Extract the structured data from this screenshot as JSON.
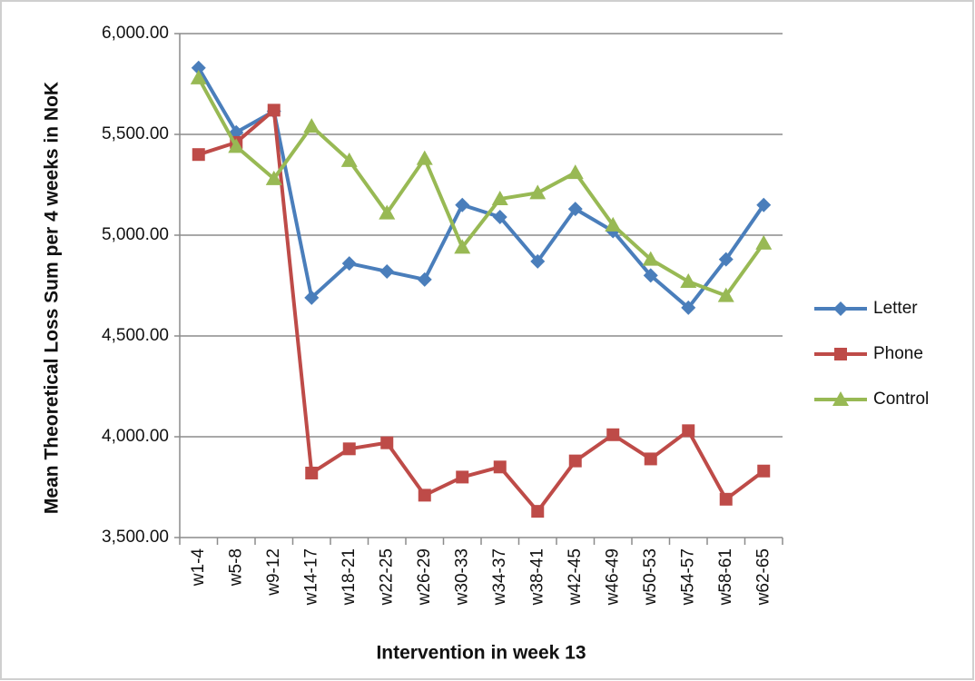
{
  "chart_data": {
    "type": "line",
    "y_label": "Mean Theoretical Loss Sum per 4 weeks in NoK",
    "x_label": "Intervention in week 13",
    "categories": [
      "w1-4",
      "w5-8",
      "w9-12",
      "w14-17",
      "w18-21",
      "w22-25",
      "w26-29",
      "w30-33",
      "w34-37",
      "w38-41",
      "w42-45",
      "w46-49",
      "w50-53",
      "w54-57",
      "w58-61",
      "w62-65"
    ],
    "series": [
      {
        "name": "Letter",
        "color": "#4a7ebb",
        "marker": "diamond",
        "values": [
          5830,
          5510,
          5615,
          4690,
          4860,
          4820,
          4780,
          5150,
          5090,
          4870,
          5130,
          5020,
          4800,
          4640,
          4880,
          5150
        ]
      },
      {
        "name": "Phone",
        "color": "#be4b48",
        "marker": "square",
        "values": [
          5400,
          5460,
          5620,
          3820,
          3940,
          3970,
          3710,
          3800,
          3850,
          3630,
          3880,
          4010,
          3890,
          4030,
          3690,
          3830
        ]
      },
      {
        "name": "Control",
        "color": "#98b954",
        "marker": "triangle",
        "values": [
          5780,
          5440,
          5280,
          5540,
          5370,
          5110,
          5380,
          4940,
          5180,
          5210,
          5310,
          5050,
          4880,
          4770,
          4700,
          4960
        ]
      }
    ],
    "ylim": [
      3500,
      6000
    ],
    "yticks": [
      {
        "value": 3500,
        "label": "3,500.00"
      },
      {
        "value": 4000,
        "label": "4,000.00"
      },
      {
        "value": 4500,
        "label": "4,500.00"
      },
      {
        "value": 5000,
        "label": "5,000.00"
      },
      {
        "value": 5500,
        "label": "5,500.00"
      },
      {
        "value": 6000,
        "label": "6,000.00"
      }
    ],
    "grid": true,
    "legend": "right"
  }
}
